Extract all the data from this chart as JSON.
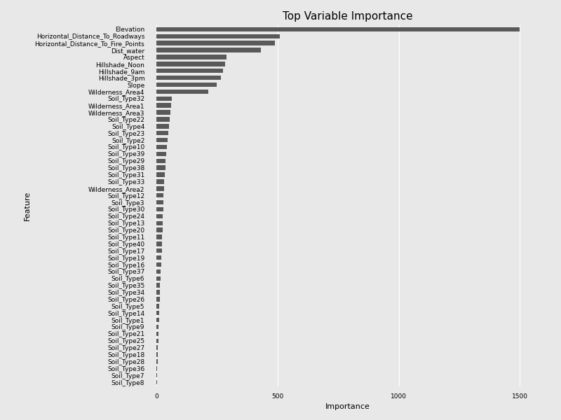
{
  "title": "Top Variable Importance",
  "xlabel": "Importance",
  "ylabel": "Feature",
  "features": [
    "Elevation",
    "Horizontal_Distance_To_Roadways",
    "Horizontal_Distance_To_Fire_Points",
    "Dist_water",
    "Aspect",
    "Hillshade_Noon",
    "Hillshade_9am",
    "Hillshade_3pm",
    "Slope",
    "Wilderness_Area4",
    "Soil_Type32",
    "Wilderness_Area1",
    "Wilderness_Area3",
    "Soil_Type22",
    "Soil_Type4",
    "Soil_Type23",
    "Soil_Type2",
    "Soil_Type10",
    "Soil_Type39",
    "Soil_Type29",
    "Soil_Type38",
    "Soil_Type31",
    "Soil_Type33",
    "Wilderness_Area2",
    "Soil_Type12",
    "Soil_Type3",
    "Soil_Type30",
    "Soil_Type24",
    "Soil_Type13",
    "Soil_Type20",
    "Soil_Type11",
    "Soil_Type40",
    "Soil_Type17",
    "Soil_Type19",
    "Soil_Type16",
    "Soil_Type37",
    "Soil_Type6",
    "Soil_Type35",
    "Soil_Type34",
    "Soil_Type26",
    "Soil_Type5",
    "Soil_Type14",
    "Soil_Type1",
    "Soil_Type9",
    "Soil_Type21",
    "Soil_Type25",
    "Soil_Type27",
    "Soil_Type18",
    "Soil_Type28",
    "Soil_Type36",
    "Soil_Type7",
    "Soil_Type8"
  ],
  "values": [
    1500,
    510,
    490,
    430,
    290,
    285,
    275,
    265,
    250,
    215,
    65,
    60,
    58,
    55,
    52,
    50,
    47,
    44,
    41,
    39,
    37,
    35,
    33,
    32,
    30,
    29,
    28,
    27,
    26,
    25,
    24,
    23,
    22,
    21,
    20,
    18,
    17,
    16,
    15,
    14,
    13,
    12,
    11,
    10,
    9,
    8,
    7,
    6,
    5,
    4,
    3,
    2
  ],
  "bar_color": "#595959",
  "background_color": "#e8e8e8",
  "axes_background_color": "#e8e8e8",
  "grid_color": "#ffffff",
  "title_fontsize": 11,
  "label_fontsize": 8,
  "tick_fontsize": 6.5,
  "xlim": [
    -20,
    1600
  ],
  "xticks": [
    0,
    500,
    1000,
    1500
  ]
}
